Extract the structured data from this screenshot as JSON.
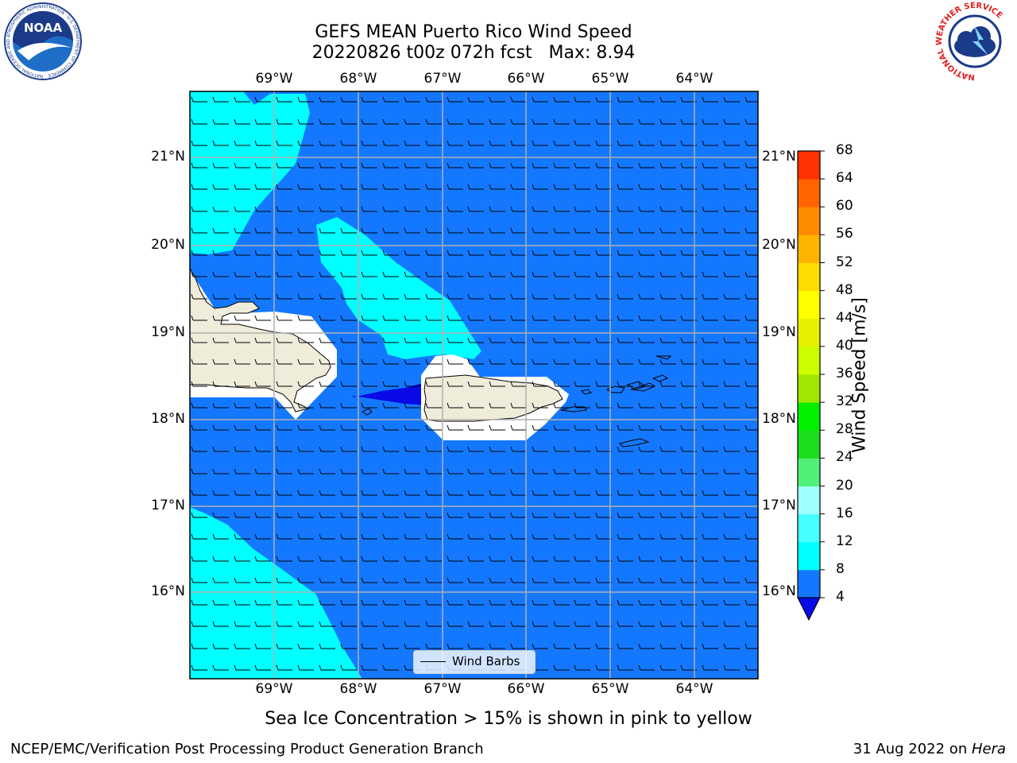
{
  "header": {
    "title_line1": "GEFS MEAN Puerto Rico Wind Speed",
    "title_line2": "20220826 t00z 072h fcst   Max: 8.94",
    "left_logo_text": "NOAA",
    "left_logo_ring": "NATIONAL OCEANIC AND ATMOSPHERIC ADMINISTRATION · U.S. DEPARTMENT OF COMMERCE",
    "right_logo_ring": "NATIONAL WEATHER SERVICE"
  },
  "map": {
    "lon_labels": [
      "69°W",
      "68°W",
      "67°W",
      "66°W",
      "65°W",
      "64°W"
    ],
    "lat_labels": [
      "21°N",
      "20°N",
      "19°N",
      "18°N",
      "17°N",
      "16°N"
    ],
    "legend_label": "Wind Barbs",
    "colors": {
      "ocean": "#1478ff",
      "light": "#00ffff",
      "dark": "#0a0ae6",
      "land": "#efedda"
    }
  },
  "colorbar": {
    "label": "Wind Speed [m/s]",
    "ticks": [
      "4",
      "8",
      "12",
      "16",
      "20",
      "24",
      "28",
      "32",
      "36",
      "40",
      "44",
      "48",
      "52",
      "56",
      "60",
      "64",
      "68"
    ],
    "colors": [
      "#1478ff",
      "#00ffff",
      "#46ffff",
      "#a0ffff",
      "#50f078",
      "#1edc1e",
      "#00f000",
      "#a0e600",
      "#ccff00",
      "#e6f000",
      "#ffff00",
      "#ffdc00",
      "#ffb400",
      "#ff8c00",
      "#ff6400",
      "#ff3200",
      "#ff0000"
    ],
    "min_extend_color": "#0a0ae6"
  },
  "caption": "Sea Ice Concentration > 15% is shown in pink to yellow",
  "footer": {
    "left": "NCEP/EMC/Verification Post Processing Product Generation Branch",
    "right_date": "31 Aug 2022 on ",
    "right_machine": "Hera"
  }
}
